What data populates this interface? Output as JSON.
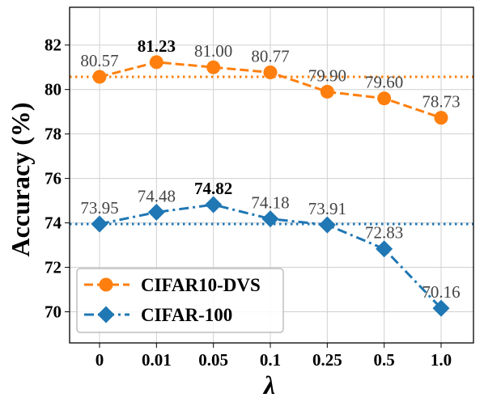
{
  "chart_data": {
    "type": "line",
    "xlabel": "λ",
    "ylabel": "Accuracy (%)",
    "categories": [
      "0",
      "0.01",
      "0.05",
      "0.1",
      "0.25",
      "0.5",
      "1.0"
    ],
    "ylim": [
      68.6,
      83.7
    ],
    "yticks": [
      "70",
      "72",
      "74",
      "76",
      "78",
      "80",
      "82"
    ],
    "grid": true,
    "legend_position": "lower-left",
    "series": [
      {
        "name": "CIFAR10-DVS",
        "values": [
          80.57,
          81.23,
          81.0,
          80.77,
          79.9,
          79.6,
          78.73
        ],
        "labels": [
          "80.57",
          "81.23",
          "81.00",
          "80.77",
          "79.90",
          "79.60",
          "78.73"
        ],
        "bold_label_index": 1,
        "baseline": 80.57,
        "color": "#ff7f0e",
        "marker": "circle",
        "linestyle": "dashed"
      },
      {
        "name": "CIFAR-100",
        "values": [
          73.95,
          74.48,
          74.82,
          74.18,
          73.91,
          72.83,
          70.16
        ],
        "labels": [
          "73.95",
          "74.48",
          "74.82",
          "74.18",
          "73.91",
          "72.83",
          "70.16"
        ],
        "bold_label_index": 2,
        "baseline": 73.95,
        "color": "#1f77b4",
        "marker": "diamond",
        "linestyle": "dashdot"
      }
    ]
  }
}
